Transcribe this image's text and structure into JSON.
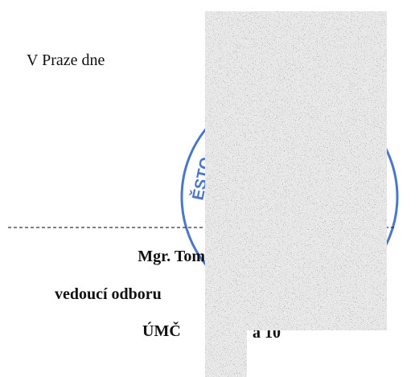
{
  "document": {
    "place_date": "V Praze dne",
    "stamp_text": "ĚSTO",
    "name": "Mgr. Tom",
    "position": "vedoucí odboru",
    "office": "ÚMČ",
    "office_tail": "a 10"
  }
}
